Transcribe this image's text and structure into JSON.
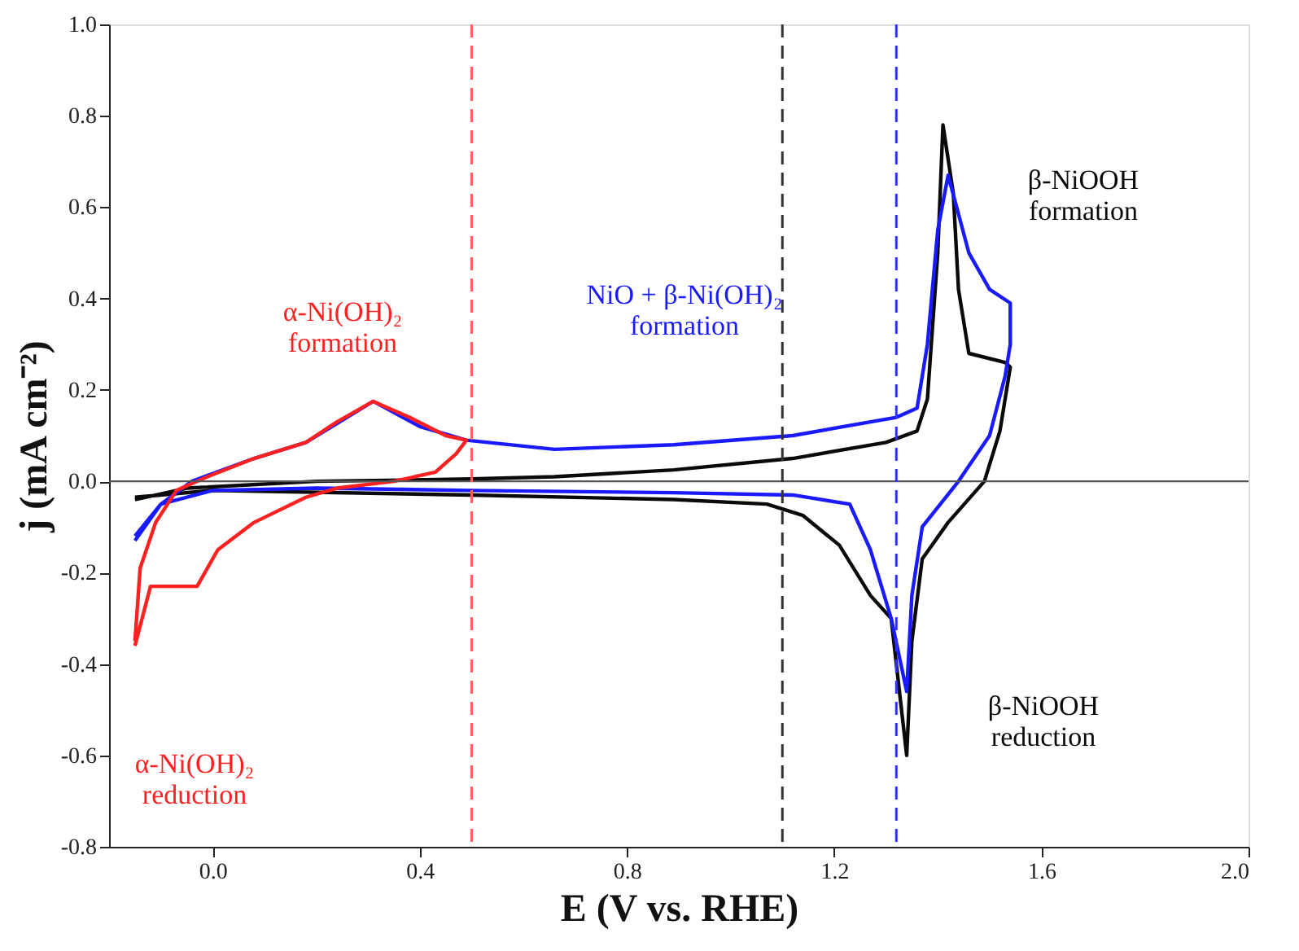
{
  "chart_data": {
    "type": "line",
    "xlabel": "E (V vs. RHE)",
    "ylabel": "j (mA cm⁻²)",
    "xlim": [
      -0.2,
      2.0
    ],
    "ylim": [
      -0.8,
      1.0
    ],
    "xticks": [
      {
        "value": 0,
        "label": "0.0"
      },
      0.4,
      0.8,
      1.2,
      1.6,
      {
        "value": 2,
        "label": "2.0"
      }
    ],
    "yticks": [
      {
        "value": -0.8,
        "label": "-0.8"
      },
      {
        "value": -0.6,
        "label": "-0.6"
      },
      {
        "value": -0.4,
        "label": "-0.4"
      },
      {
        "value": -0.2,
        "label": "-0.2"
      },
      {
        "value": 0,
        "label": "0.0"
      },
      0.2,
      0.4,
      0.6,
      0.8,
      {
        "value": 1,
        "label": "1.0"
      }
    ],
    "grid": false,
    "legend": false,
    "marker": "none",
    "line_style": "solid",
    "series": [
      {
        "color": "#0a0a0a",
        "x": [
          -0.15,
          -0.05,
          0.2,
          0.5,
          0.66,
          0.89,
          1.12,
          1.3,
          1.36,
          1.38,
          1.4,
          1.41,
          1.43,
          1.44,
          1.46,
          1.53,
          1.54,
          1.52,
          1.49,
          1.42,
          1.37,
          1.35,
          1.34,
          1.31,
          1.27,
          1.21,
          1.14,
          1.07,
          0.89,
          0.5,
          0.0,
          -0.15
        ],
        "values": [
          -0.04,
          -0.015,
          0.0,
          0.005,
          0.01,
          0.025,
          0.05,
          0.085,
          0.11,
          0.18,
          0.5,
          0.78,
          0.63,
          0.42,
          0.28,
          0.26,
          0.25,
          0.11,
          0.0,
          -0.09,
          -0.17,
          -0.35,
          -0.6,
          -0.3,
          -0.25,
          -0.14,
          -0.075,
          -0.05,
          -0.04,
          -0.03,
          -0.02,
          -0.035
        ]
      },
      {
        "color": "#1a1aff",
        "x": [
          -0.15,
          -0.1,
          -0.04,
          0.08,
          0.18,
          0.31,
          0.4,
          0.49,
          0.66,
          0.89,
          1.12,
          1.32,
          1.36,
          1.38,
          1.4,
          1.42,
          1.46,
          1.5,
          1.54,
          1.54,
          1.53,
          1.5,
          1.44,
          1.37,
          1.35,
          1.34,
          1.31,
          1.27,
          1.23,
          1.12,
          0.89,
          0.5,
          0.2,
          0.0,
          -0.1,
          -0.15
        ],
        "values": [
          -0.13,
          -0.05,
          0.0,
          0.05,
          0.085,
          0.175,
          0.12,
          0.09,
          0.07,
          0.08,
          0.1,
          0.14,
          0.16,
          0.3,
          0.55,
          0.67,
          0.5,
          0.42,
          0.39,
          0.3,
          0.23,
          0.1,
          0.0,
          -0.1,
          -0.25,
          -0.46,
          -0.3,
          -0.15,
          -0.05,
          -0.03,
          -0.025,
          -0.02,
          -0.015,
          -0.02,
          -0.05,
          -0.12
        ]
      },
      {
        "color": "#ff2020",
        "x": [
          -0.15,
          -0.12,
          -0.09,
          -0.03,
          0.01,
          0.08,
          0.18,
          0.24,
          0.35,
          0.43,
          0.47,
          0.49,
          0.45,
          0.38,
          0.31,
          0.24,
          0.18,
          0.08,
          -0.01,
          -0.07,
          -0.11,
          -0.14,
          -0.15
        ],
        "values": [
          -0.36,
          -0.23,
          -0.23,
          -0.23,
          -0.15,
          -0.09,
          -0.035,
          -0.015,
          0.0,
          0.02,
          0.06,
          0.09,
          0.1,
          0.14,
          0.175,
          0.13,
          0.085,
          0.05,
          0.01,
          -0.02,
          -0.09,
          -0.19,
          -0.35
        ]
      }
    ],
    "ref_lines": [
      {
        "axis": "y",
        "value": 0,
        "color": "#555555",
        "line_style": "solid"
      },
      {
        "axis": "x",
        "value": 0.5,
        "color": "#ff6060",
        "line_style": "dashed"
      },
      {
        "axis": "x",
        "value": 1.32,
        "color": "#3030ff",
        "line_style": "dashed"
      },
      {
        "axis": "x",
        "value": 1.1,
        "color": "#333333",
        "line_style": "dashed"
      }
    ],
    "annotations": [
      "α-Ni(OH)₂\nformation",
      "NiO + β-Ni(OH)₂\nformation",
      "β-NiOOH\nformation",
      "β-NiOOH\nreduction",
      "α-Ni(OH)₂\nreduction"
    ]
  }
}
